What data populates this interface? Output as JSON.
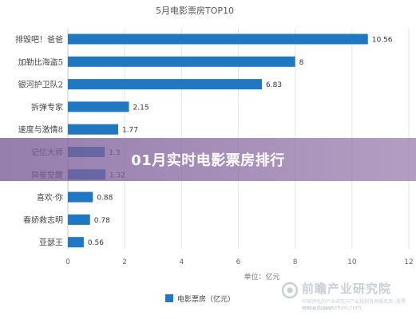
{
  "chart_data": {
    "type": "bar",
    "orientation": "horizontal",
    "title": "5月电影票房TOP10",
    "categories": [
      "排毁吧！爸爸",
      "加勒比海盗5",
      "银河护卫队2",
      "拆弹专家",
      "速度与激情8",
      "记忆大师",
      "异星觉醒",
      "喜欢·你",
      "春娇救志明",
      "亚瑟王"
    ],
    "values": [
      10.56,
      8,
      6.83,
      2.15,
      1.77,
      1.3,
      1.32,
      0.88,
      0.78,
      0.56
    ],
    "value_labels": [
      "10.56",
      "8",
      "6.83",
      "2.15",
      "1.77",
      "1.3",
      "1.32",
      "0.88",
      "0.78",
      "0.56"
    ],
    "xlim": [
      0,
      12
    ],
    "xticks": [
      "0",
      "2",
      "4",
      "6",
      "8",
      "10",
      "12"
    ],
    "unit_label": "单位：亿元",
    "legend": "电影票房（亿元）",
    "legend_placement": "bottom",
    "grid": true,
    "bar_color": "#1f78c1"
  },
  "overlay": {
    "title": "01月实时电影票房排行"
  },
  "watermark": {
    "brand": "前瞻产业研究院",
    "subtitle": "中国领先的产业研究与产业规划咨询服务商 (股票代码 839599)",
    "url": "www.d.qianzhan.com"
  }
}
